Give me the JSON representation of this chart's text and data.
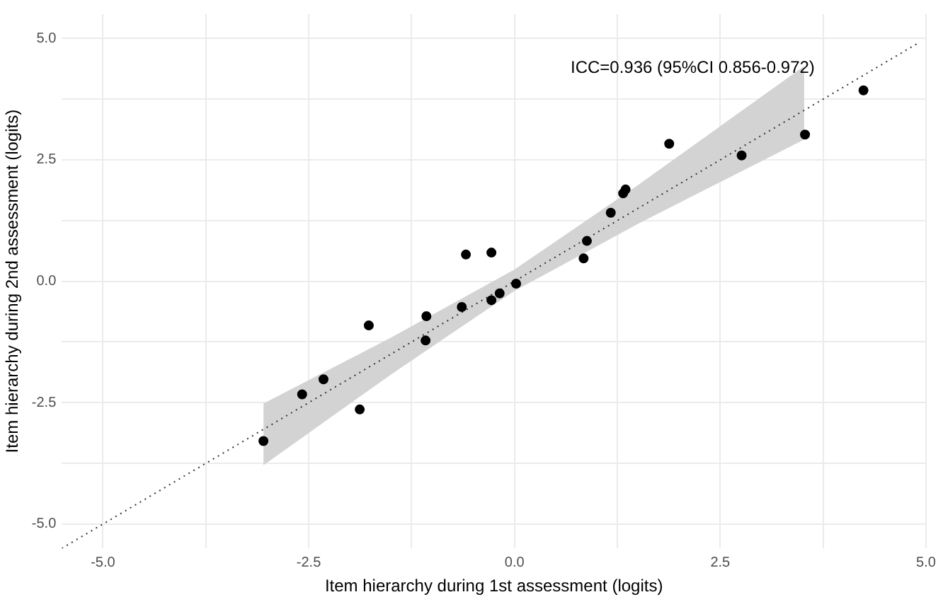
{
  "chart_data": {
    "type": "scatter",
    "xlabel": "Item hierarchy during 1st assessment (logits)",
    "ylabel": "Item hierarchy during 2nd assessment (logits)",
    "annotations": [
      "ICC=0.936 (95%CI 0.856-0.972)"
    ],
    "xlim": [
      -5.5,
      5
    ],
    "ylim": [
      -5.5,
      5.5
    ],
    "xticks": [
      {
        "value": -5,
        "label": "-5.0"
      },
      {
        "value": -3.75,
        "label": null
      },
      {
        "value": -2.5,
        "label": "-2.5"
      },
      {
        "value": -1.25,
        "label": null
      },
      {
        "value": 0,
        "label": "0.0"
      },
      {
        "value": 1.25,
        "label": null
      },
      {
        "value": 2.5,
        "label": "2.5"
      },
      {
        "value": 3.75,
        "label": null
      },
      {
        "value": 5,
        "label": "5.0"
      }
    ],
    "yticks": [
      {
        "value": -5,
        "label": "-5.0"
      },
      {
        "value": -3.75,
        "label": null
      },
      {
        "value": -2.5,
        "label": "-2.5"
      },
      {
        "value": -1.25,
        "label": null
      },
      {
        "value": 0,
        "label": "0.0"
      },
      {
        "value": 1.25,
        "label": null
      },
      {
        "value": 2.5,
        "label": "2.5"
      },
      {
        "value": 3.75,
        "label": null
      },
      {
        "value": 5,
        "label": "5.0"
      }
    ],
    "grid": true,
    "legend": false,
    "marker": "circle",
    "series": [
      {
        "type": "line",
        "color": "#d3d3d3",
        "x": [
          -3.05,
          -1.5,
          0,
          1.5,
          3.52
        ],
        "values": [
          null,
          null,
          null,
          null,
          null
        ],
        "lower": [
          -3.79,
          -1.92,
          -0.2,
          1.18,
          2.92
        ],
        "upper": [
          -2.52,
          -1.16,
          0.24,
          1.98,
          4.43
        ]
      },
      {
        "type": "line",
        "color": "#333333",
        "line_style": "dotted",
        "marker": "none",
        "x": [
          -5.5,
          4.9
        ],
        "values": [
          -5.5,
          4.9
        ]
      },
      {
        "type": "scatter",
        "color": "#000000",
        "x": [
          -3.05,
          -2.58,
          -2.32,
          -1.88,
          -1.77,
          -1.07,
          -1.08,
          -0.64,
          -0.59,
          -0.28,
          -0.28,
          -0.18,
          0.02,
          0.84,
          0.88,
          1.17,
          1.32,
          1.35,
          1.88,
          2.76,
          3.53,
          4.24
        ],
        "values": [
          -3.29,
          -2.33,
          -2.02,
          -2.64,
          -0.91,
          -0.72,
          -1.22,
          -0.53,
          0.55,
          0.59,
          -0.39,
          -0.25,
          -0.05,
          0.47,
          0.83,
          1.41,
          1.81,
          1.89,
          2.83,
          2.59,
          3.02,
          3.93
        ]
      }
    ]
  }
}
